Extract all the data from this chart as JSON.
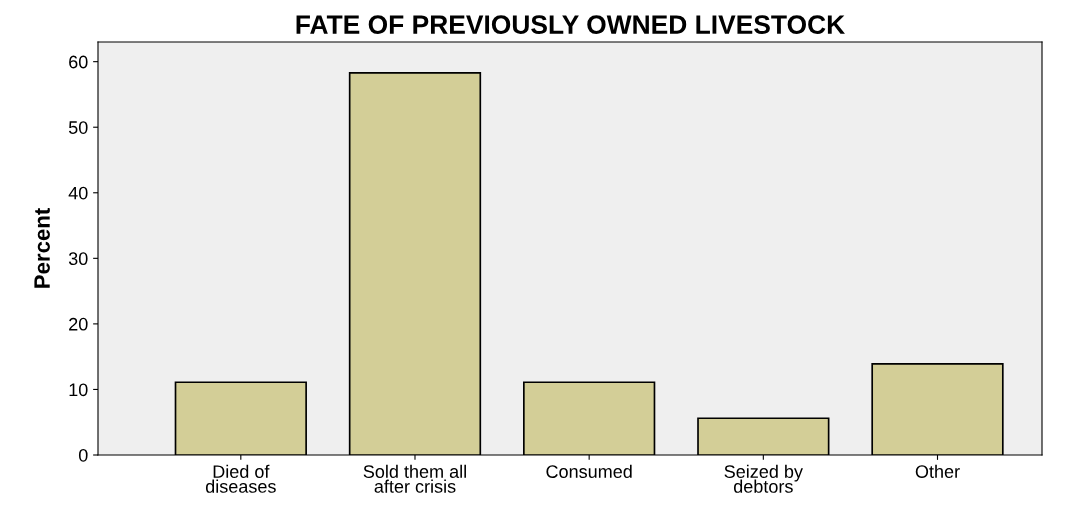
{
  "chart_data": {
    "type": "bar",
    "title": "FATE OF PREVIOUSLY OWNED LIVESTOCK",
    "ylabel": "Percent",
    "categories": [
      "Died of\ndiseases",
      "Sold them all\nafter crisis",
      "Consumed",
      "Seized by\ndebtors",
      "Other"
    ],
    "values": [
      11.1,
      58.3,
      11.1,
      5.6,
      13.9
    ],
    "color": "#d3ce97",
    "ylim": [
      0,
      63
    ],
    "yticks": [
      0,
      10,
      20,
      30,
      40,
      50,
      60
    ],
    "grid": false
  }
}
